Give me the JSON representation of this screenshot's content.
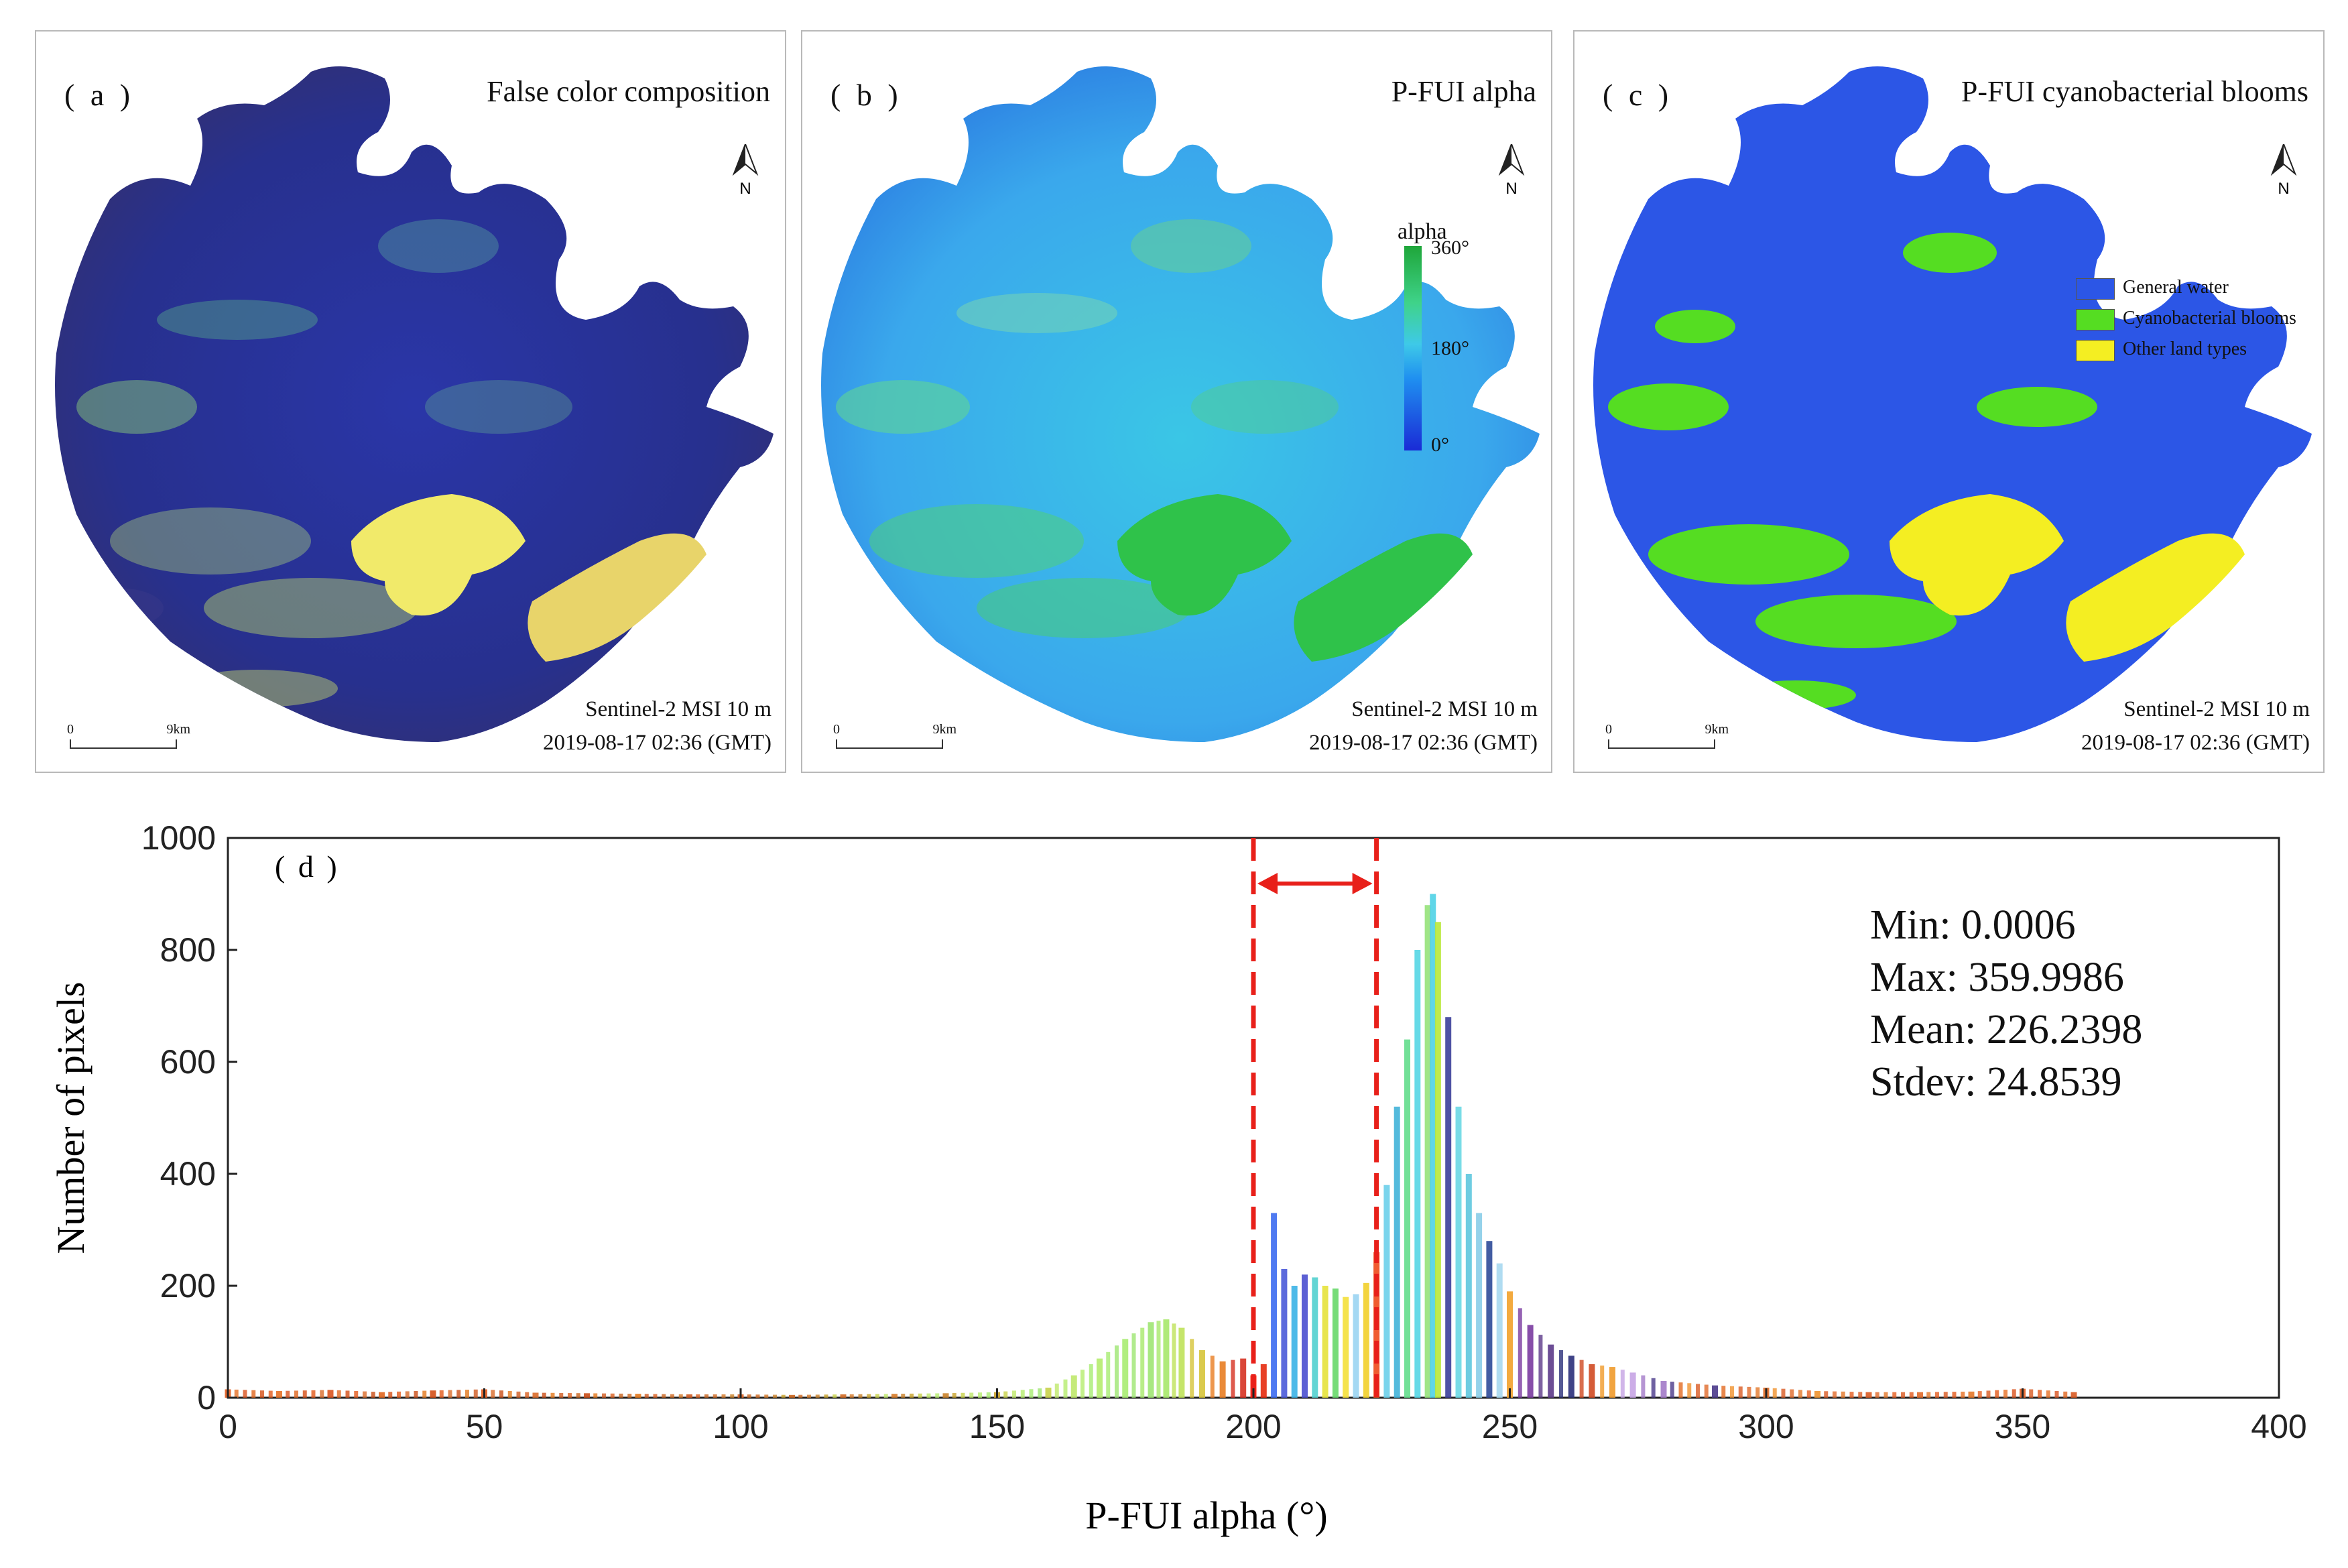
{
  "panels": {
    "a": {
      "label": "( a )",
      "title": "False color composition",
      "sensor": "Sentinel-2 MSI  10 m",
      "datetime": "2019-08-17 02:36 (GMT)",
      "scale_start": "0",
      "scale_end": "9km",
      "north": "N"
    },
    "b": {
      "label": "( b )",
      "title": "P-FUI alpha",
      "sensor": "Sentinel-2 MSI  10 m",
      "datetime": "2019-08-17 02:36 (GMT)",
      "scale_start": "0",
      "scale_end": "9km",
      "north": "N",
      "colorbar": {
        "title": "alpha",
        "max": "360°",
        "mid": "180°",
        "min": "0°"
      }
    },
    "c": {
      "label": "( c )",
      "title": "P-FUI cyanobacterial blooms",
      "sensor": "Sentinel-2 MSI  10 m",
      "datetime": "2019-08-17 02:36 (GMT)",
      "scale_start": "0",
      "scale_end": "9km",
      "north": "N",
      "legend": [
        {
          "label": "General water",
          "color": "#2c56e6"
        },
        {
          "label": "Cyanobacterial blooms",
          "color": "#55dd22"
        },
        {
          "label": "Other land types",
          "color": "#f4ee22"
        }
      ]
    }
  },
  "chart_data": {
    "type": "bar",
    "panel_label": "( d )",
    "xlabel": "P-FUI  alpha  (°)",
    "ylabel": "Number of pixels",
    "xlim": [
      0,
      400
    ],
    "ylim": [
      0,
      1000
    ],
    "xticks": [
      0,
      50,
      100,
      150,
      200,
      250,
      300,
      350,
      400
    ],
    "yticks": [
      0,
      200,
      400,
      600,
      800,
      1000
    ],
    "threshold_lines": [
      200,
      224
    ],
    "stats": [
      "Min: 0.0006",
      "Max: 359.9986",
      "Mean: 226.2398",
      "Stdev: 24.8539"
    ],
    "series": [
      {
        "name": "mixed",
        "x": [
          0,
          10,
          20,
          30,
          40,
          50,
          60,
          70,
          80,
          90,
          100,
          110,
          120,
          130,
          140,
          150,
          160,
          165,
          170,
          175,
          180,
          183,
          186,
          190,
          194,
          198,
          200,
          202,
          204,
          206,
          208,
          210,
          212,
          214,
          216,
          218,
          220,
          222,
          224,
          226,
          228,
          230,
          232,
          234,
          235,
          236,
          238,
          240,
          242,
          244,
          246,
          248,
          250,
          254,
          258,
          262,
          266,
          270,
          274,
          280,
          290,
          300,
          310,
          320,
          330,
          340,
          350,
          360
        ],
        "y": [
          15,
          12,
          14,
          10,
          13,
          15,
          9,
          8,
          7,
          6,
          6,
          5,
          6,
          7,
          8,
          10,
          18,
          40,
          70,
          105,
          135,
          140,
          125,
          85,
          65,
          70,
          40,
          60,
          330,
          230,
          200,
          220,
          215,
          200,
          195,
          180,
          185,
          205,
          260,
          380,
          520,
          640,
          800,
          880,
          900,
          850,
          680,
          520,
          400,
          330,
          280,
          240,
          190,
          130,
          95,
          75,
          60,
          55,
          45,
          30,
          22,
          18,
          12,
          10,
          10,
          11,
          16,
          10
        ],
        "colors": [
          "#e25a1c",
          "#e67026",
          "#d9531e",
          "#e0661f",
          "#d44f17",
          "#e25a1c",
          "#d96c2a",
          "#c94d17",
          "#e2781d",
          "#cf5b22",
          "#d96020",
          "#c9651f",
          "#d06a23",
          "#d57b2a",
          "#c9822b",
          "#c8a22a",
          "#c8d24a",
          "#bfe86c",
          "#b5ec6e",
          "#a8ec72",
          "#9ee672",
          "#a7e86a",
          "#bfe25a",
          "#d6c43a",
          "#e87d22",
          "#d63222",
          "#ff1a00",
          "#e62b0e",
          "#3c6cf0",
          "#4a5ad8",
          "#3bb2e6",
          "#4a4fcf",
          "#52d0cf",
          "#e6e23a",
          "#68d86a",
          "#f4e03a",
          "#9ad4f2",
          "#f2cf2a",
          "#ee4a1a",
          "#6ccfea",
          "#41b2d8",
          "#63dd8c",
          "#55d6e4",
          "#96e27a",
          "#4fd2e6",
          "#b9e83a",
          "#3b3f9a",
          "#6ad8e4",
          "#5ec6de",
          "#8acde8",
          "#2e4a98",
          "#a7d8ef",
          "#f2a12a",
          "#7a3ba0",
          "#5c3a8a",
          "#2a2f7a",
          "#d04a22",
          "#f09a2a",
          "#c6a4e4",
          "#a27ac8",
          "#4a3a8a",
          "#e26a22",
          "#f0922e",
          "#d95b24",
          "#e06a2a",
          "#e4782a",
          "#e55f22",
          "#d85a22"
        ]
      }
    ]
  }
}
